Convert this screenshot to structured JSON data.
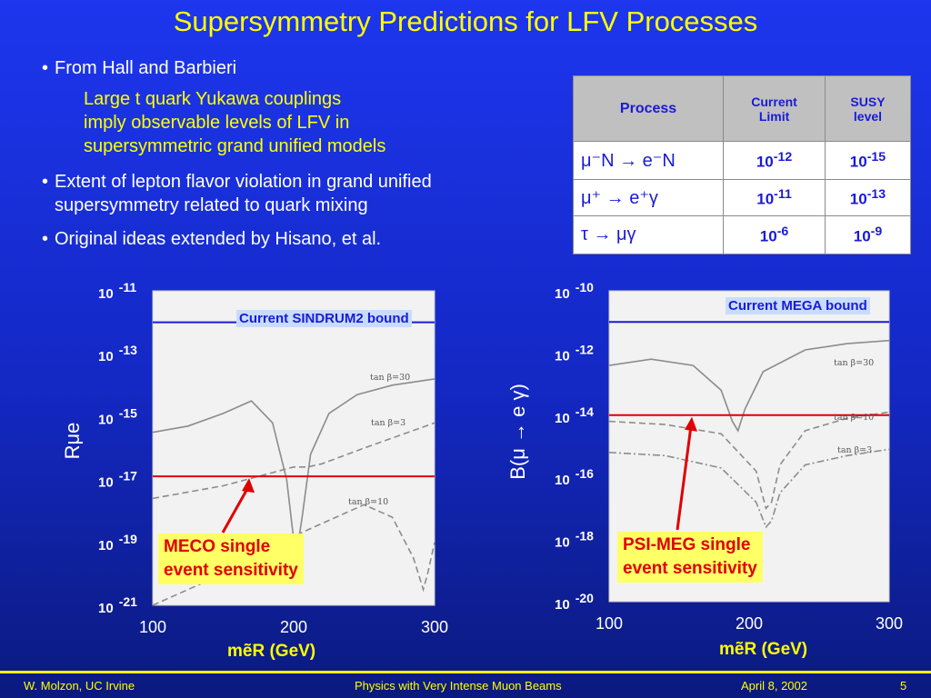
{
  "title": "Supersymmetry Predictions for LFV Processes",
  "bullets": [
    {
      "text": "From Hall and Barbieri",
      "sub": [
        "Large t quark Yukawa couplings",
        "imply observable levels of LFV in",
        "supersymmetric  grand unified models"
      ]
    },
    {
      "text_lines": [
        "Extent of lepton flavor violation in grand unified",
        "supersymmetry related to quark mixing"
      ]
    },
    {
      "text": "Original ideas extended by Hisano, et al."
    }
  ],
  "bullet_char": "•",
  "table": {
    "headers": [
      "Process",
      "Current Limit",
      "SUSY level"
    ],
    "header_lines": [
      [
        "Process"
      ],
      [
        "Current",
        "Limit"
      ],
      [
        "SUSY",
        "level"
      ]
    ],
    "rows": [
      {
        "process": "μ⁻N → e⁻N",
        "current_limit": "10-12",
        "susy_level": "10-15",
        "limit_base": "10",
        "limit_exp": "-12",
        "susy_base": "10",
        "susy_exp": "-15"
      },
      {
        "process": "μ⁺ → e⁺γ",
        "current_limit": "10-11",
        "susy_level": "10-13",
        "limit_base": "10",
        "limit_exp": "-11",
        "susy_base": "10",
        "susy_exp": "-13"
      },
      {
        "process": "τ → μγ",
        "current_limit": "10-6",
        "susy_level": "10-9",
        "limit_base": "10",
        "limit_exp": "-6",
        "susy_base": "10",
        "susy_exp": "-9"
      }
    ]
  },
  "chart_data": [
    {
      "type": "line",
      "ylabel": "Rμe",
      "xlabel": "mẽR (GeV)",
      "x_ticks": [
        "100",
        "200",
        "300"
      ],
      "y_ticks": [
        {
          "base": "10",
          "exp": "-11"
        },
        {
          "base": "10",
          "exp": "-13"
        },
        {
          "base": "10",
          "exp": "-15"
        },
        {
          "base": "10",
          "exp": "-17"
        },
        {
          "base": "10",
          "exp": "-19"
        },
        {
          "base": "10",
          "exp": "-21"
        }
      ],
      "xlim": [
        100,
        300
      ],
      "ylim_log10": [
        -21,
        -11
      ],
      "log_y": true,
      "hlines": [
        {
          "label": "Current SINDRUM2 bound",
          "y_log10": -12.0,
          "color": "#1a1ad8"
        },
        {
          "label": "MECO single event sensitivity",
          "y_log10": -16.9,
          "color": "#e00000"
        }
      ],
      "annotation_lines": [
        "MECO single",
        "event sensitivity"
      ],
      "series": [
        {
          "name": "tan β=30",
          "style": "solid",
          "x": [
            100,
            125,
            150,
            170,
            185,
            195,
            200,
            203,
            206,
            212,
            225,
            245,
            270,
            300
          ],
          "y_log10": [
            -15.5,
            -15.3,
            -14.9,
            -14.5,
            -15.2,
            -17.0,
            -18.9,
            -19.1,
            -18.2,
            -16.2,
            -14.9,
            -14.3,
            -14.0,
            -13.8
          ]
        },
        {
          "name": "tan β=3",
          "style": "dash",
          "x": [
            100,
            150,
            200,
            210,
            220,
            250,
            300
          ],
          "y_log10": [
            -17.6,
            -17.2,
            -16.6,
            -16.6,
            -16.5,
            -16.0,
            -15.2
          ]
        },
        {
          "name": "tan β=10",
          "style": "dash",
          "x": [
            100,
            150,
            200,
            250,
            270,
            285,
            292,
            295,
            300
          ],
          "y_log10": [
            -21,
            -20,
            -18.8,
            -17.8,
            -18.2,
            -19.5,
            -20.5,
            -20.0,
            -19.0
          ]
        }
      ]
    },
    {
      "type": "line",
      "ylabel": "B(μ → e γ)",
      "xlabel": "mẽR (GeV)",
      "x_ticks": [
        "100",
        "200",
        "300"
      ],
      "y_ticks": [
        {
          "base": "10",
          "exp": "-10"
        },
        {
          "base": "10",
          "exp": "-12"
        },
        {
          "base": "10",
          "exp": "-14"
        },
        {
          "base": "10",
          "exp": "-16"
        },
        {
          "base": "10",
          "exp": "-18"
        },
        {
          "base": "10",
          "exp": "-20"
        }
      ],
      "xlim": [
        100,
        300
      ],
      "ylim_log10": [
        -20,
        -10
      ],
      "log_y": true,
      "hlines": [
        {
          "label": "Current MEGA bound",
          "y_log10": -11.0,
          "color": "#1a1ad8"
        },
        {
          "label": "PSI-MEG single event sensitivity",
          "y_log10": -14.0,
          "color": "#e00000"
        }
      ],
      "annotation_lines": [
        "PSI-MEG single",
        "event sensitivity"
      ],
      "series": [
        {
          "name": "tan β=30",
          "style": "solid",
          "x": [
            100,
            130,
            160,
            180,
            188,
            192,
            197,
            210,
            240,
            270,
            300
          ],
          "y_log10": [
            -12.4,
            -12.2,
            -12.4,
            -13.2,
            -14.2,
            -14.5,
            -13.8,
            -12.6,
            -11.9,
            -11.7,
            -11.6
          ]
        },
        {
          "name": "tan β=10",
          "style": "dash",
          "x": [
            100,
            140,
            180,
            205,
            212,
            216,
            222,
            240,
            270,
            300
          ],
          "y_log10": [
            -14.2,
            -14.3,
            -14.6,
            -15.8,
            -17.0,
            -16.8,
            -15.6,
            -14.5,
            -14.1,
            -13.9
          ]
        },
        {
          "name": "tan β=3",
          "style": "dashdot",
          "x": [
            100,
            140,
            180,
            205,
            212,
            216,
            222,
            240,
            270,
            300
          ],
          "y_log10": [
            -15.2,
            -15.3,
            -15.7,
            -16.8,
            -17.6,
            -17.4,
            -16.5,
            -15.6,
            -15.3,
            -15.1
          ]
        }
      ]
    }
  ],
  "footer": {
    "left": "W. Molzon, UC Irvine",
    "center": "Physics with Very Intense Muon Beams",
    "date": "April 8, 2002",
    "page": "5"
  }
}
